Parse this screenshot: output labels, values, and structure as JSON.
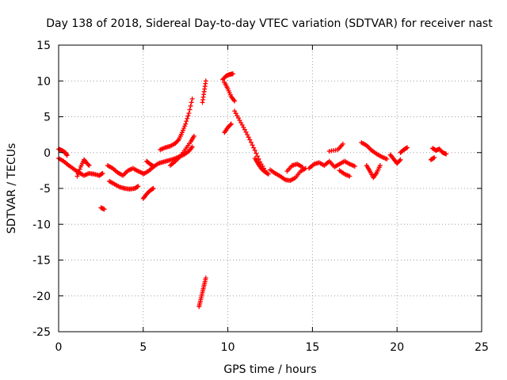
{
  "chart_data": {
    "type": "scatter",
    "title": "Day 138 of 2018, Sidereal Day-to-day VTEC variation (SDTVAR) for receiver nast",
    "xlabel": "GPS time / hours",
    "ylabel": "SDTVAR / TECUs",
    "xlim": [
      0,
      25
    ],
    "ylim": [
      -25,
      15
    ],
    "xticks": [
      0,
      5,
      10,
      15,
      20,
      25
    ],
    "yticks": [
      -25,
      -20,
      -15,
      -10,
      -5,
      0,
      5,
      10,
      15
    ],
    "grid": true,
    "marker": "+",
    "color": "#ff0000",
    "segments": [
      {
        "x": [
          0.0,
          0.3,
          0.6,
          0.9,
          1.2,
          1.5,
          1.8,
          2.1,
          2.4,
          2.6
        ],
        "y": [
          -0.8,
          -1.2,
          -1.8,
          -2.3,
          -2.8,
          -3.2,
          -2.9,
          -3.0,
          -3.2,
          -2.9
        ]
      },
      {
        "x": [
          0.0,
          0.2,
          0.4,
          0.5
        ],
        "y": [
          0.5,
          0.3,
          0.0,
          -0.4
        ]
      },
      {
        "x": [
          1.1,
          1.3,
          1.5,
          1.6,
          1.8
        ],
        "y": [
          -3.3,
          -2.0,
          -1.0,
          -1.3,
          -1.8
        ]
      },
      {
        "x": [
          2.5,
          2.7
        ],
        "y": [
          -7.7,
          -7.9
        ]
      },
      {
        "x": [
          2.9,
          3.2,
          3.5,
          3.8,
          4.1,
          4.4,
          4.7,
          5.0
        ],
        "y": [
          -1.8,
          -2.2,
          -2.8,
          -3.2,
          -2.5,
          -2.2,
          -2.6,
          -2.9
        ]
      },
      {
        "x": [
          3.0,
          3.3,
          3.6,
          3.9,
          4.2,
          4.5,
          4.7
        ],
        "y": [
          -4.0,
          -4.4,
          -4.8,
          -5.0,
          -5.1,
          -5.0,
          -4.7
        ]
      },
      {
        "x": [
          5.0,
          5.3,
          5.6,
          5.9,
          6.2,
          6.5,
          6.8,
          7.1,
          7.4,
          7.7,
          7.9
        ],
        "y": [
          -3.0,
          -2.6,
          -2.0,
          -1.5,
          -1.3,
          -1.1,
          -0.9,
          -0.6,
          -0.3,
          0.2,
          0.8
        ]
      },
      {
        "x": [
          5.0,
          5.2,
          5.4,
          5.6
        ],
        "y": [
          -6.4,
          -5.8,
          -5.3,
          -5.0
        ]
      },
      {
        "x": [
          5.2,
          5.4,
          5.6
        ],
        "y": [
          -1.2,
          -1.6,
          -1.9
        ]
      },
      {
        "x": [
          6.0,
          6.3,
          6.6,
          6.9,
          7.1,
          7.3,
          7.5,
          7.7,
          7.9
        ],
        "y": [
          0.4,
          0.7,
          0.9,
          1.3,
          1.8,
          2.8,
          4.0,
          5.5,
          7.5
        ]
      },
      {
        "x": [
          6.6,
          6.9,
          7.2,
          7.5,
          7.8,
          8.0
        ],
        "y": [
          -1.8,
          -1.2,
          -0.5,
          0.5,
          1.5,
          2.3
        ]
      },
      {
        "x": [
          8.3,
          8.4,
          8.5,
          8.6,
          8.7
        ],
        "y": [
          -21.5,
          -20.5,
          -19.5,
          -18.5,
          -17.5
        ]
      },
      {
        "x": [
          8.5,
          8.6,
          8.7
        ],
        "y": [
          7.0,
          8.5,
          10.0
        ]
      },
      {
        "x": [
          9.7,
          9.9,
          10.1,
          10.3
        ],
        "y": [
          10.2,
          10.7,
          10.9,
          11.0
        ]
      },
      {
        "x": [
          9.8,
          10.0,
          10.2,
          10.4
        ],
        "y": [
          9.8,
          8.9,
          7.8,
          7.2
        ]
      },
      {
        "x": [
          9.8,
          10.0,
          10.2
        ],
        "y": [
          2.8,
          3.5,
          4.0
        ]
      },
      {
        "x": [
          10.4,
          10.7,
          11.0,
          11.3,
          11.6,
          11.9,
          12.2
        ],
        "y": [
          5.8,
          4.5,
          3.2,
          1.8,
          0.3,
          -1.3,
          -2.5
        ]
      },
      {
        "x": [
          11.6,
          11.8,
          12.0,
          12.2,
          12.4
        ],
        "y": [
          -0.8,
          -1.6,
          -2.3,
          -2.7,
          -3.0
        ]
      },
      {
        "x": [
          12.5,
          12.8,
          13.1,
          13.4,
          13.7,
          14.0,
          14.3,
          14.6
        ],
        "y": [
          -2.4,
          -2.9,
          -3.3,
          -3.8,
          -3.9,
          -3.5,
          -2.6,
          -2.2
        ]
      },
      {
        "x": [
          13.5,
          13.8,
          14.1,
          14.4
        ],
        "y": [
          -2.6,
          -1.8,
          -1.6,
          -2.0
        ]
      },
      {
        "x": [
          14.8,
          15.1,
          15.4,
          15.7,
          16.0,
          16.3,
          16.6,
          16.9,
          17.2,
          17.5
        ],
        "y": [
          -2.2,
          -1.6,
          -1.4,
          -1.8,
          -1.2,
          -2.0,
          -1.6,
          -1.2,
          -1.6,
          -1.9
        ]
      },
      {
        "x": [
          16.0,
          16.5,
          16.8
        ],
        "y": [
          0.2,
          0.4,
          1.2
        ]
      },
      {
        "x": [
          16.6,
          16.9,
          17.2
        ],
        "y": [
          -2.5,
          -3.0,
          -3.3
        ]
      },
      {
        "x": [
          17.9,
          18.2,
          18.5,
          18.8,
          19.1,
          19.4
        ],
        "y": [
          1.4,
          1.0,
          0.3,
          -0.2,
          -0.6,
          -0.9
        ]
      },
      {
        "x": [
          18.2,
          18.4,
          18.6,
          18.8,
          19.0
        ],
        "y": [
          -1.8,
          -2.6,
          -3.5,
          -2.8,
          -1.8
        ]
      },
      {
        "x": [
          19.6,
          19.8,
          20.0,
          20.2
        ],
        "y": [
          -0.3,
          -0.9,
          -1.5,
          -1.0
        ]
      },
      {
        "x": [
          20.2,
          20.4,
          20.6
        ],
        "y": [
          0.0,
          0.4,
          0.7
        ]
      },
      {
        "x": [
          22.0,
          22.2
        ],
        "y": [
          -1.0,
          -0.7
        ]
      },
      {
        "x": [
          22.1,
          22.3,
          22.5,
          22.7,
          22.9
        ],
        "y": [
          0.6,
          0.3,
          0.5,
          0.0,
          -0.2
        ]
      }
    ]
  }
}
